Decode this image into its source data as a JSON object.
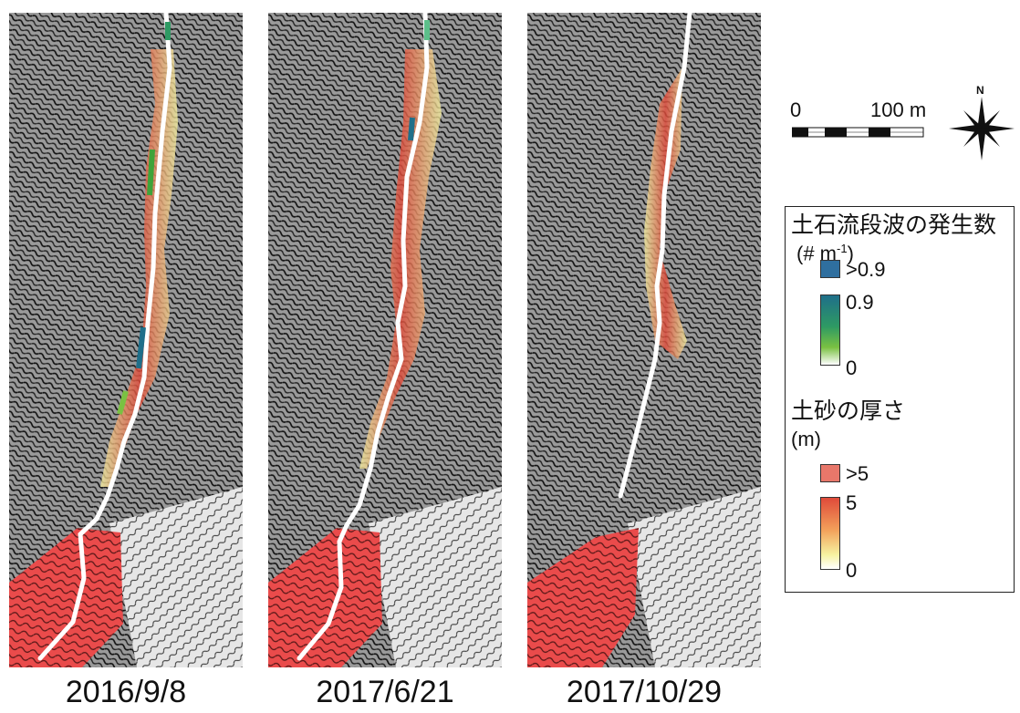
{
  "panels": [
    {
      "date": "2016/9/8",
      "surge_markers": [
        "teal",
        "green",
        "teal",
        "green"
      ]
    },
    {
      "date": "2017/6/21",
      "surge_markers": [
        "teal",
        "teal"
      ]
    },
    {
      "date": "2017/10/29",
      "surge_markers": []
    }
  ],
  "scale_bar": {
    "zero_label": "0",
    "length_label": "100 m"
  },
  "north_arrow": {
    "label": "N"
  },
  "legend": {
    "surge_title": "土石流段波の発生数",
    "surge_unit": {
      "base": "(# m",
      "exp": "-1",
      "close": ")"
    },
    "surge_over_label": ">0.9",
    "surge_max_label": "0.9",
    "surge_min_label": "0",
    "sediment_title": "土砂の厚さ",
    "sediment_unit": "(m)",
    "sediment_over_label": ">5",
    "sediment_max_label": "5",
    "sediment_min_label": "0"
  },
  "colors": {
    "surge_over": "#2f6f9f",
    "surge_high": "#1f6f8a",
    "surge_mid": "#2e9a63",
    "surge_low": "#7ac142",
    "sediment_over": "#e8776a",
    "sediment_high": "#e04a3a",
    "sediment_mid": "#f2a05a",
    "sediment_low": "#f6f2a0",
    "deposit_fan": "#ea4b4b",
    "channel": "#ffffff"
  }
}
